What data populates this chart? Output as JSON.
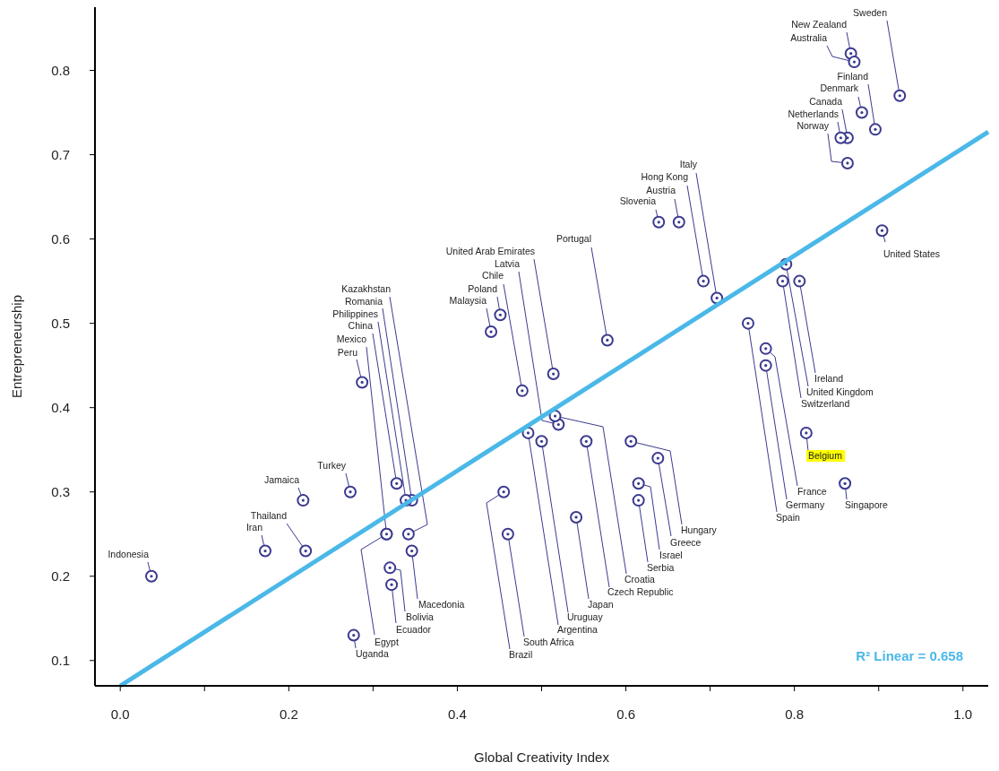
{
  "chart_data": {
    "type": "scatter",
    "xlabel": "Global Creativity Index",
    "ylabel": "Entrepreneurship",
    "xlim": [
      -0.03,
      1.03
    ],
    "ylim": [
      0.07,
      0.875
    ],
    "xticks": [
      {
        "value": 0,
        "label": "0.0"
      },
      {
        "value": 0.1,
        "label": null
      },
      {
        "value": 0.2,
        "label": "0.2"
      },
      {
        "value": 0.3,
        "label": null
      },
      {
        "value": 0.4,
        "label": "0.4"
      },
      {
        "value": 0.5,
        "label": null
      },
      {
        "value": 0.6,
        "label": "0.6"
      },
      {
        "value": 0.7,
        "label": null
      },
      {
        "value": 0.8,
        "label": "0.8"
      },
      {
        "value": 0.9,
        "label": null
      },
      {
        "value": 1,
        "label": "1.0"
      }
    ],
    "yticks": [
      0.1,
      0.2,
      0.3,
      0.4,
      0.5,
      0.6,
      0.7,
      0.8
    ],
    "grid": false,
    "series": [
      {
        "color": "#3b3a8f",
        "marker": "circle",
        "x": [
          0.037,
          0.172,
          0.22,
          0.217,
          0.273,
          0.287,
          0.342,
          0.346,
          0.339,
          0.328,
          0.316,
          0.346,
          0.32,
          0.322,
          0.316,
          0.277,
          0.44,
          0.451,
          0.477,
          0.52,
          0.514,
          0.578,
          0.516,
          0.484,
          0.5,
          0.553,
          0.541,
          0.606,
          0.638,
          0.615,
          0.615,
          0.455,
          0.46,
          0.925,
          0.867,
          0.871,
          0.896,
          0.88,
          0.863,
          0.855,
          0.863,
          0.639,
          0.663,
          0.692,
          0.708,
          0.904,
          0.806,
          0.79,
          0.786,
          0.745,
          0.766,
          0.766,
          0.814,
          0.86
        ],
        "values": [
          0.2,
          0.23,
          0.23,
          0.29,
          0.3,
          0.43,
          0.25,
          0.29,
          0.29,
          0.31,
          0.25,
          0.23,
          0.21,
          0.19,
          0.25,
          0.13,
          0.49,
          0.51,
          0.42,
          0.38,
          0.44,
          0.48,
          0.39,
          0.37,
          0.36,
          0.36,
          0.27,
          0.36,
          0.34,
          0.31,
          0.29,
          0.3,
          0.25,
          0.77,
          0.82,
          0.81,
          0.73,
          0.75,
          0.72,
          0.72,
          0.69,
          0.62,
          0.62,
          0.55,
          0.53,
          0.61,
          0.55,
          0.57,
          0.55,
          0.5,
          0.45,
          0.47,
          0.37,
          0.31
        ]
      },
      {
        "type": "line",
        "color": "#4ab8e8",
        "x": [
          0,
          1.03
        ],
        "values": [
          0.07,
          0.727
        ]
      }
    ],
    "annotations": [
      {
        "text": "Indonesia",
        "x": 0.037,
        "y": 0.2
      },
      {
        "text": "Iran",
        "x": 0.172,
        "y": 0.23
      },
      {
        "text": "Thailand",
        "x": 0.22,
        "y": 0.23
      },
      {
        "text": "Jamaica",
        "x": 0.217,
        "y": 0.29
      },
      {
        "text": "Turkey",
        "x": 0.273,
        "y": 0.3
      },
      {
        "text": "Peru",
        "x": 0.287,
        "y": 0.43
      },
      {
        "text": "Kazakhstan",
        "x": 0.342,
        "y": 0.25
      },
      {
        "text": "Romania",
        "x": 0.346,
        "y": 0.29
      },
      {
        "text": "Philippines",
        "x": 0.339,
        "y": 0.29
      },
      {
        "text": "China",
        "x": 0.328,
        "y": 0.31
      },
      {
        "text": "Mexico",
        "x": 0.316,
        "y": 0.25
      },
      {
        "text": "Macedonia",
        "x": 0.346,
        "y": 0.23
      },
      {
        "text": "Bolivia",
        "x": 0.32,
        "y": 0.21
      },
      {
        "text": "Ecuador",
        "x": 0.322,
        "y": 0.19
      },
      {
        "text": "Egypt",
        "x": 0.316,
        "y": 0.25
      },
      {
        "text": "Uganda",
        "x": 0.277,
        "y": 0.13
      },
      {
        "text": "Malaysia",
        "x": 0.44,
        "y": 0.49
      },
      {
        "text": "Poland",
        "x": 0.451,
        "y": 0.51
      },
      {
        "text": "Chile",
        "x": 0.477,
        "y": 0.42
      },
      {
        "text": "Latvia",
        "x": 0.52,
        "y": 0.38
      },
      {
        "text": "United Arab Emirates",
        "x": 0.514,
        "y": 0.44
      },
      {
        "text": "Portugal",
        "x": 0.578,
        "y": 0.48
      },
      {
        "text": "Croatia",
        "x": 0.516,
        "y": 0.39
      },
      {
        "text": "Argentina",
        "x": 0.484,
        "y": 0.37
      },
      {
        "text": "Uruguay",
        "x": 0.5,
        "y": 0.36
      },
      {
        "text": "Czech Republic",
        "x": 0.553,
        "y": 0.36
      },
      {
        "text": "Japan",
        "x": 0.541,
        "y": 0.27
      },
      {
        "text": "Hungary",
        "x": 0.606,
        "y": 0.36
      },
      {
        "text": "Greece",
        "x": 0.638,
        "y": 0.34
      },
      {
        "text": "Israel",
        "x": 0.615,
        "y": 0.31
      },
      {
        "text": "Serbia",
        "x": 0.615,
        "y": 0.29
      },
      {
        "text": "Brazil",
        "x": 0.455,
        "y": 0.3
      },
      {
        "text": "South Africa",
        "x": 0.46,
        "y": 0.25
      },
      {
        "text": "Sweden",
        "x": 0.925,
        "y": 0.77
      },
      {
        "text": "New Zealand",
        "x": 0.867,
        "y": 0.82
      },
      {
        "text": "Australia",
        "x": 0.871,
        "y": 0.81
      },
      {
        "text": "Finland",
        "x": 0.896,
        "y": 0.73
      },
      {
        "text": "Denmark",
        "x": 0.88,
        "y": 0.75
      },
      {
        "text": "Canada",
        "x": 0.863,
        "y": 0.72
      },
      {
        "text": "Netherlands",
        "x": 0.855,
        "y": 0.72
      },
      {
        "text": "Norway",
        "x": 0.863,
        "y": 0.69
      },
      {
        "text": "Slovenia",
        "x": 0.639,
        "y": 0.62
      },
      {
        "text": "Austria",
        "x": 0.663,
        "y": 0.62
      },
      {
        "text": "Hong Kong",
        "x": 0.692,
        "y": 0.55
      },
      {
        "text": "Italy",
        "x": 0.708,
        "y": 0.53
      },
      {
        "text": "United States",
        "x": 0.904,
        "y": 0.61
      },
      {
        "text": "Ireland",
        "x": 0.806,
        "y": 0.55
      },
      {
        "text": "United Kingdom",
        "x": 0.79,
        "y": 0.57
      },
      {
        "text": "Switzerland",
        "x": 0.786,
        "y": 0.55
      },
      {
        "text": "Spain",
        "x": 0.745,
        "y": 0.5
      },
      {
        "text": "Germany",
        "x": 0.766,
        "y": 0.45
      },
      {
        "text": "France",
        "x": 0.766,
        "y": 0.47
      },
      {
        "text": "Belgium",
        "x": 0.814,
        "y": 0.37
      },
      {
        "text": "Singapore",
        "x": 0.86,
        "y": 0.31
      },
      "R² Linear = 0.658"
    ]
  }
}
